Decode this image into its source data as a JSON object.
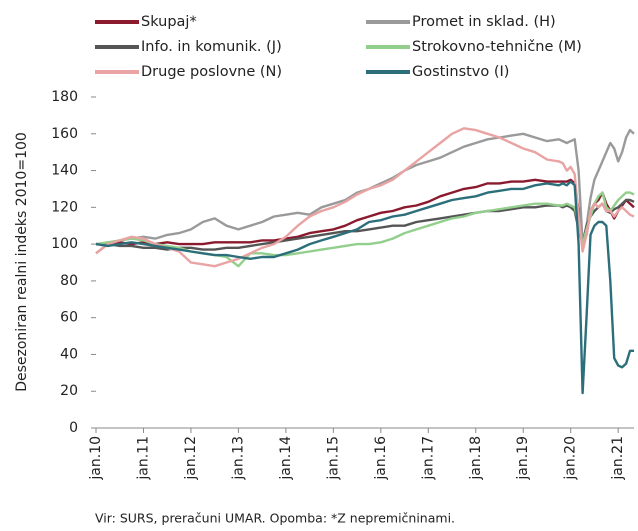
{
  "chart_data": {
    "type": "line",
    "y_label": "Desezoniran realni indeks 2010=100",
    "note": "Vir: SURS, preračuni UMAR. Opomba: *Z nepremičninami.",
    "x": [
      0,
      3,
      6,
      9,
      12,
      15,
      18,
      21,
      24,
      27,
      30,
      33,
      36,
      39,
      42,
      45,
      48,
      51,
      54,
      57,
      60,
      63,
      66,
      69,
      72,
      75,
      78,
      81,
      84,
      87,
      90,
      93,
      96,
      99,
      102,
      105,
      108,
      111,
      114,
      117,
      118,
      119,
      120,
      121,
      122,
      123,
      124,
      125,
      126,
      127,
      128,
      129,
      130,
      131,
      132,
      133,
      134,
      135,
      136
    ],
    "xlim": [
      0,
      136
    ],
    "xticks": [
      {
        "value": 0,
        "label": "jan.10"
      },
      {
        "value": 12,
        "label": "jan.11"
      },
      {
        "value": 24,
        "label": "jan.12"
      },
      {
        "value": 36,
        "label": "jan.13"
      },
      {
        "value": 48,
        "label": "jan.14"
      },
      {
        "value": 60,
        "label": "jan.15"
      },
      {
        "value": 72,
        "label": "jan.16"
      },
      {
        "value": 84,
        "label": "jan.17"
      },
      {
        "value": 96,
        "label": "jan.18"
      },
      {
        "value": 108,
        "label": "jan.19"
      },
      {
        "value": 120,
        "label": "jan.20"
      },
      {
        "value": 132,
        "label": "jan.21"
      }
    ],
    "ylim": [
      0,
      180
    ],
    "yticks": [
      0,
      20,
      40,
      60,
      80,
      100,
      120,
      140,
      160,
      180
    ],
    "series": [
      {
        "name": "Skupaj*",
        "color": "#8b1a2e",
        "values": [
          100,
          100,
          101,
          100,
          101,
          100,
          101,
          100,
          100,
          100,
          101,
          101,
          101,
          101,
          102,
          102,
          103,
          104,
          106,
          107,
          108,
          110,
          113,
          115,
          117,
          118,
          120,
          121,
          123,
          126,
          128,
          130,
          131,
          133,
          133,
          134,
          134,
          135,
          134,
          134,
          134,
          134,
          135,
          133,
          118,
          100,
          105,
          118,
          122,
          124,
          128,
          122,
          118,
          114,
          118,
          121,
          124,
          122,
          120
        ]
      },
      {
        "name": "Promet in sklad. (H)",
        "color": "#9a9a9a",
        "values": [
          95,
          100,
          102,
          103,
          104,
          103,
          105,
          106,
          108,
          112,
          114,
          110,
          108,
          110,
          112,
          115,
          116,
          117,
          116,
          120,
          122,
          124,
          128,
          130,
          133,
          136,
          140,
          143,
          145,
          147,
          150,
          153,
          155,
          157,
          158,
          159,
          160,
          158,
          156,
          157,
          156,
          155,
          156,
          157,
          140,
          100,
          110,
          125,
          135,
          140,
          145,
          150,
          155,
          152,
          145,
          150,
          158,
          162,
          160
        ]
      },
      {
        "name": "Info. in komunik. (J)",
        "color": "#555555",
        "values": [
          100,
          100,
          99,
          99,
          98,
          98,
          97,
          98,
          98,
          97,
          97,
          98,
          98,
          99,
          100,
          101,
          102,
          103,
          104,
          105,
          106,
          107,
          107,
          108,
          109,
          110,
          110,
          112,
          113,
          114,
          115,
          116,
          117,
          118,
          118,
          119,
          120,
          120,
          121,
          121,
          120,
          121,
          120,
          118,
          108,
          100,
          110,
          115,
          118,
          120,
          122,
          118,
          117,
          119,
          120,
          122,
          124,
          124,
          123
        ]
      },
      {
        "name": "Strokovno-tehnične (M)",
        "color": "#93cf8c",
        "values": [
          100,
          101,
          102,
          103,
          102,
          100,
          99,
          98,
          96,
          95,
          94,
          93,
          88,
          95,
          95,
          94,
          94,
          95,
          96,
          97,
          98,
          99,
          100,
          100,
          101,
          103,
          106,
          108,
          110,
          112,
          114,
          115,
          117,
          118,
          119,
          120,
          121,
          122,
          122,
          121,
          121,
          122,
          121,
          120,
          110,
          100,
          108,
          115,
          122,
          126,
          128,
          120,
          118,
          121,
          124,
          126,
          128,
          128,
          127
        ]
      },
      {
        "name": "Druge poslovne (N)",
        "color": "#e9a3a3",
        "values": [
          95,
          100,
          102,
          104,
          103,
          100,
          98,
          96,
          90,
          89,
          88,
          90,
          92,
          95,
          98,
          100,
          104,
          110,
          115,
          118,
          120,
          123,
          127,
          130,
          132,
          135,
          140,
          145,
          150,
          155,
          160,
          163,
          162,
          160,
          158,
          155,
          152,
          150,
          146,
          145,
          144,
          140,
          142,
          138,
          115,
          96,
          105,
          118,
          122,
          120,
          122,
          118,
          118,
          115,
          118,
          120,
          118,
          116,
          115
        ]
      },
      {
        "name": "Gostinstvo (I)",
        "color": "#2c6f7b",
        "values": [
          100,
          99,
          100,
          101,
          100,
          99,
          98,
          97,
          96,
          95,
          94,
          94,
          93,
          92,
          93,
          93,
          95,
          97,
          100,
          102,
          104,
          106,
          108,
          112,
          113,
          115,
          116,
          118,
          120,
          122,
          124,
          125,
          126,
          128,
          129,
          130,
          130,
          132,
          133,
          132,
          133,
          132,
          134,
          132,
          100,
          19,
          60,
          105,
          110,
          112,
          112,
          110,
          80,
          38,
          34,
          33,
          35,
          42,
          42
        ]
      }
    ]
  }
}
